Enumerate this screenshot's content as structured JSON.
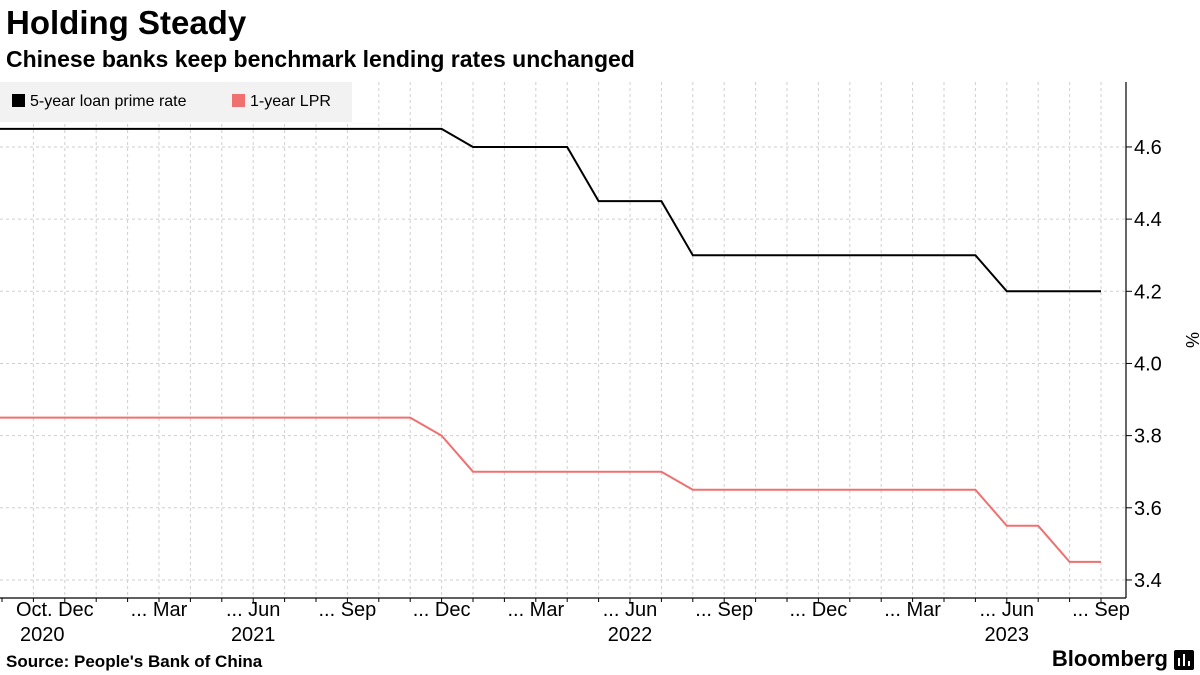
{
  "header": {
    "title": "Holding Steady",
    "subtitle": "Chinese banks keep benchmark lending rates unchanged"
  },
  "footer": {
    "source": "Source: People's Bank of China",
    "brand": "Bloomberg"
  },
  "colors": {
    "five_year": "#000000",
    "one_year": "#f07070",
    "grid": "#cfcfcf",
    "legend_bg": "#f2f2f2"
  },
  "chart_data": {
    "type": "line",
    "title": "Holding Steady",
    "subtitle": "Chinese banks keep benchmark lending rates unchanged",
    "ylabel": "%",
    "ylim": [
      3.35,
      4.78
    ],
    "yticks": [
      3.4,
      3.6,
      3.8,
      4.0,
      4.2,
      4.4,
      4.6
    ],
    "y_axis_position": "right",
    "grid": true,
    "legend_position": "top-left",
    "x_range": [
      "2020-10",
      "2023-09"
    ],
    "x_ticks": [
      {
        "x": "2020-10",
        "label": "Oct",
        "year": "2020"
      },
      {
        "x": "2020-12",
        "label": "... Dec"
      },
      {
        "x": "2021-03",
        "label": "... Mar"
      },
      {
        "x": "2021-06",
        "label": "... Jun",
        "year": "2021"
      },
      {
        "x": "2021-09",
        "label": "... Sep"
      },
      {
        "x": "2021-12",
        "label": "... Dec"
      },
      {
        "x": "2022-03",
        "label": "... Mar"
      },
      {
        "x": "2022-06",
        "label": "... Jun",
        "year": "2022"
      },
      {
        "x": "2022-09",
        "label": "... Sep"
      },
      {
        "x": "2022-12",
        "label": "... Dec"
      },
      {
        "x": "2023-03",
        "label": "... Mar"
      },
      {
        "x": "2023-06",
        "label": "... Jun",
        "year": "2023"
      },
      {
        "x": "2023-09",
        "label": "... Sep"
      }
    ],
    "x": [
      "2020-10",
      "2020-11",
      "2020-12",
      "2021-01",
      "2021-02",
      "2021-03",
      "2021-04",
      "2021-05",
      "2021-06",
      "2021-07",
      "2021-08",
      "2021-09",
      "2021-10",
      "2021-11",
      "2021-12",
      "2022-01",
      "2022-02",
      "2022-03",
      "2022-04",
      "2022-05",
      "2022-06",
      "2022-07",
      "2022-08",
      "2022-09",
      "2022-10",
      "2022-11",
      "2022-12",
      "2023-01",
      "2023-02",
      "2023-03",
      "2023-04",
      "2023-05",
      "2023-06",
      "2023-07",
      "2023-08",
      "2023-09"
    ],
    "series": [
      {
        "name": "5-year loan prime rate",
        "values": [
          4.65,
          4.65,
          4.65,
          4.65,
          4.65,
          4.65,
          4.65,
          4.65,
          4.65,
          4.65,
          4.65,
          4.65,
          4.65,
          4.65,
          4.65,
          4.6,
          4.6,
          4.6,
          4.6,
          4.45,
          4.45,
          4.45,
          4.3,
          4.3,
          4.3,
          4.3,
          4.3,
          4.3,
          4.3,
          4.3,
          4.3,
          4.3,
          4.2,
          4.2,
          4.2,
          4.2
        ]
      },
      {
        "name": "1-year LPR",
        "values": [
          3.85,
          3.85,
          3.85,
          3.85,
          3.85,
          3.85,
          3.85,
          3.85,
          3.85,
          3.85,
          3.85,
          3.85,
          3.85,
          3.85,
          3.8,
          3.7,
          3.7,
          3.7,
          3.7,
          3.7,
          3.7,
          3.7,
          3.65,
          3.65,
          3.65,
          3.65,
          3.65,
          3.65,
          3.65,
          3.65,
          3.65,
          3.65,
          3.55,
          3.55,
          3.45,
          3.45
        ]
      }
    ]
  }
}
